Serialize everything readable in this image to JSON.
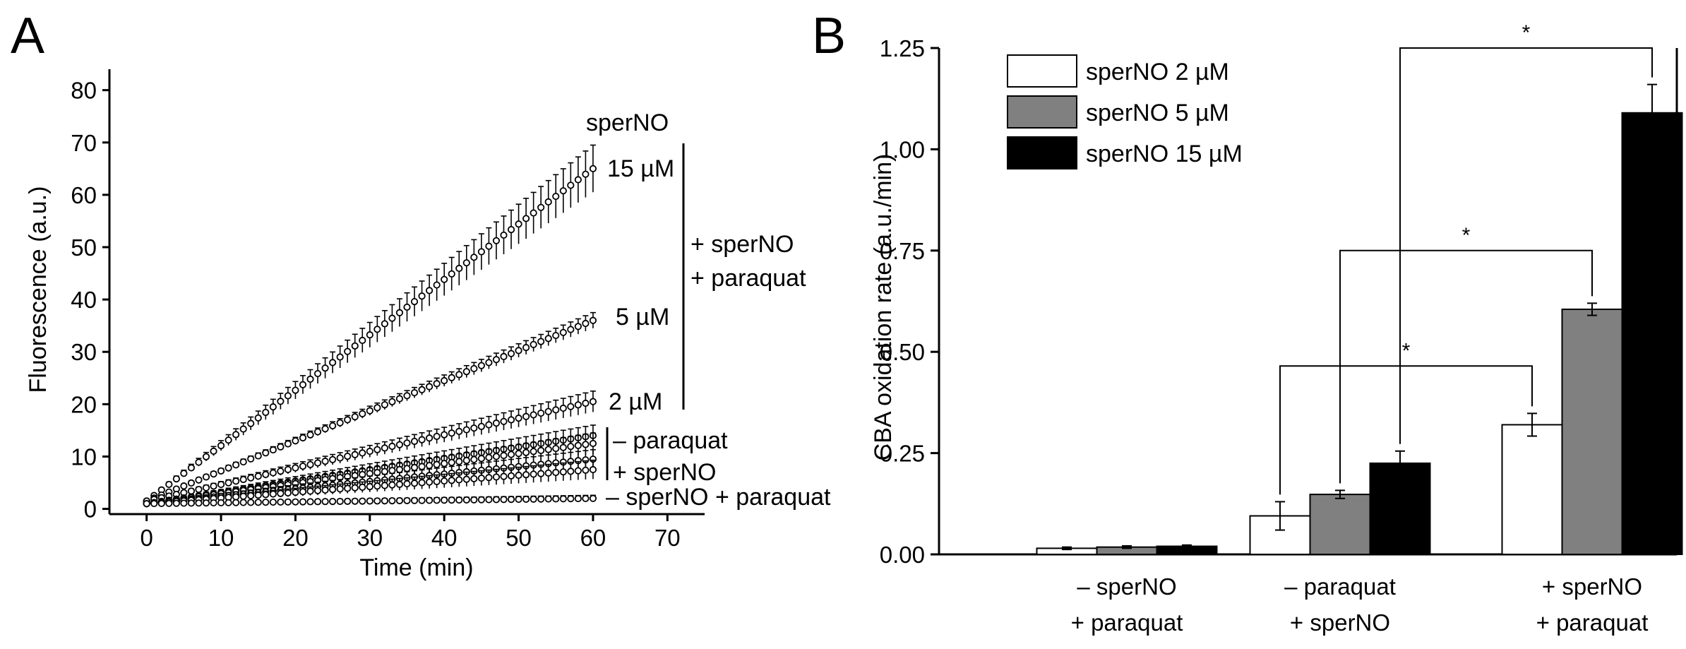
{
  "colors": {
    "axis": "#000000",
    "bar_low": "#ffffff",
    "bar_mid": "#808080",
    "bar_high": "#000000"
  },
  "panels": {
    "a_label": "A",
    "b_label": "B"
  },
  "chart_data": [
    {
      "type": "scatter",
      "panel": "A",
      "xlabel": "Time (min)",
      "ylabel": "Fluorescence (a.u.)",
      "xlim": [
        -5,
        75
      ],
      "ylim": [
        -1,
        84
      ],
      "xticks": [
        0,
        10,
        20,
        30,
        40,
        50,
        60,
        70
      ],
      "yticks": [
        0,
        10,
        20,
        30,
        40,
        50,
        60,
        70,
        80
      ],
      "series": [
        {
          "name": "15 µM",
          "x": [
            0,
            60
          ],
          "y": [
            1.5,
            65
          ],
          "error_end": 4.5
        },
        {
          "name": "5 µM",
          "x": [
            0,
            60
          ],
          "y": [
            1.5,
            36
          ],
          "error_end": 1.5
        },
        {
          "name": "2 µM",
          "x": [
            0,
            60
          ],
          "y": [
            1.5,
            20.5
          ],
          "error_end": 2.0
        },
        {
          "name": "– paraquat (1)",
          "x": [
            0,
            60
          ],
          "y": [
            1,
            14
          ],
          "error_end": 2.0
        },
        {
          "name": "– paraquat (2)",
          "x": [
            0,
            60
          ],
          "y": [
            1,
            12.5
          ],
          "error_end": 2.0
        },
        {
          "name": "+ sperNO (1)",
          "x": [
            0,
            60
          ],
          "y": [
            1,
            9.5
          ],
          "error_end": 1.8
        },
        {
          "name": "+ sperNO (2)",
          "x": [
            0,
            60
          ],
          "y": [
            1,
            7.5
          ],
          "error_end": 1.8
        },
        {
          "name": "– sperNO + paraquat",
          "x": [
            0,
            60
          ],
          "y": [
            1,
            2
          ],
          "error_end": 0.6
        }
      ],
      "annotations": {
        "header": "sperNO",
        "label_15": "15 µM",
        "label_5": "5 µM",
        "label_2": "2 µM",
        "group_main_1": "+ sperNO",
        "group_main_2": "+ paraquat",
        "ctrl_paraquat": "– paraquat",
        "ctrl_sperno": "+ sperNO",
        "ctrl_both": "– sperNO + paraquat"
      }
    },
    {
      "type": "bar",
      "panel": "B",
      "ylabel": "CBA oxidation rate (a.u./min)",
      "ylim": [
        0,
        1.25
      ],
      "yticks": [
        "0.00",
        "0.25",
        "0.50",
        "0.75",
        "1.00",
        "1.25"
      ],
      "categories": [
        [
          "– sperNO",
          "+ paraquat"
        ],
        [
          "– paraquat",
          "+ sperNO"
        ],
        [
          "+ sperNO",
          "+ paraquat"
        ]
      ],
      "series": [
        {
          "name": "sperNO 2 µM",
          "values": [
            0.015,
            0.095,
            0.32
          ],
          "errors": [
            0.003,
            0.035,
            0.028
          ]
        },
        {
          "name": "sperNO 5 µM",
          "values": [
            0.018,
            0.148,
            0.605
          ],
          "errors": [
            0.003,
            0.01,
            0.015
          ]
        },
        {
          "name": "sperNO 15 µM",
          "values": [
            0.02,
            0.225,
            1.09
          ],
          "errors": [
            0.003,
            0.03,
            0.07
          ]
        }
      ],
      "significance": [
        {
          "from": [
            1,
            0
          ],
          "to": [
            2,
            0
          ],
          "label": "*"
        },
        {
          "from": [
            1,
            1
          ],
          "to": [
            2,
            1
          ],
          "label": "*"
        },
        {
          "from": [
            1,
            2
          ],
          "to": [
            2,
            2
          ],
          "label": "*"
        }
      ],
      "legend_position": "top-left"
    }
  ]
}
